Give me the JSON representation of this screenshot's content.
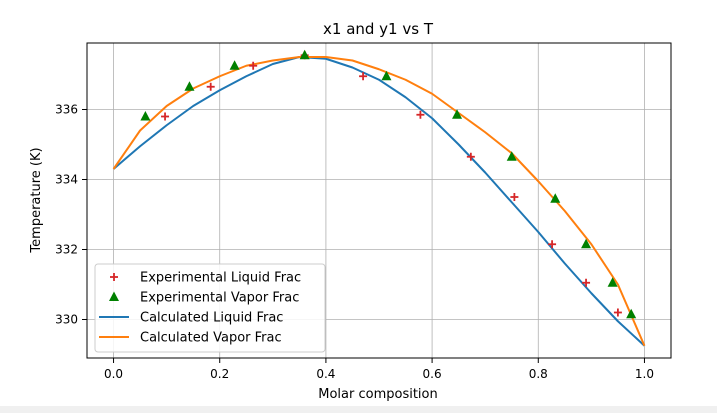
{
  "chart_data": {
    "type": "scatter+line",
    "title": "x1 and y1 vs T",
    "xlabel": "Molar composition",
    "ylabel": "Temperature (K)",
    "xlim": [
      -0.05,
      1.05
    ],
    "ylim": [
      328.9,
      337.9
    ],
    "xticks": [
      0.0,
      0.2,
      0.4,
      0.6,
      0.8,
      1.0
    ],
    "xtick_labels": [
      "0.0",
      "0.2",
      "0.4",
      "0.6",
      "0.8",
      "1.0"
    ],
    "yticks": [
      330,
      332,
      334,
      336
    ],
    "ytick_labels": [
      "330",
      "332",
      "334",
      "336"
    ],
    "grid": true,
    "legend_position": "lower-left",
    "series": [
      {
        "name": "Experimental Liquid Frac",
        "kind": "scatter",
        "marker": "plus",
        "color": "#d62728",
        "x": [
          0.097,
          0.183,
          0.263,
          0.36,
          0.47,
          0.578,
          0.673,
          0.755,
          0.826,
          0.89,
          0.95
        ],
        "y": [
          335.8,
          336.65,
          337.25,
          337.55,
          336.95,
          335.85,
          334.65,
          333.5,
          332.15,
          331.05,
          330.2
        ]
      },
      {
        "name": "Experimental Vapor Frac",
        "kind": "scatter",
        "marker": "triangle",
        "color": "#008000",
        "x": [
          0.06,
          0.143,
          0.228,
          0.36,
          0.514,
          0.647,
          0.75,
          0.832,
          0.89,
          0.94,
          0.975
        ],
        "y": [
          335.8,
          336.65,
          337.25,
          337.55,
          336.95,
          335.85,
          334.65,
          333.45,
          332.15,
          331.05,
          330.15
        ]
      },
      {
        "name": "Calculated Liquid Frac",
        "kind": "line",
        "color": "#1f77b4",
        "x": [
          0.0,
          0.05,
          0.1,
          0.15,
          0.2,
          0.25,
          0.3,
          0.35,
          0.4,
          0.45,
          0.5,
          0.55,
          0.6,
          0.65,
          0.7,
          0.75,
          0.8,
          0.85,
          0.9,
          0.95,
          1.0
        ],
        "y": [
          334.3,
          334.95,
          335.55,
          336.1,
          336.55,
          336.95,
          337.3,
          337.5,
          337.45,
          337.2,
          336.85,
          336.35,
          335.75,
          335.0,
          334.2,
          333.35,
          332.5,
          331.6,
          330.75,
          329.95,
          329.25
        ]
      },
      {
        "name": "Calculated Vapor Frac",
        "kind": "line",
        "color": "#ff7f0e",
        "x": [
          0.0,
          0.05,
          0.1,
          0.15,
          0.2,
          0.25,
          0.3,
          0.35,
          0.4,
          0.45,
          0.5,
          0.55,
          0.6,
          0.65,
          0.7,
          0.75,
          0.8,
          0.85,
          0.9,
          0.95,
          1.0
        ],
        "y": [
          334.3,
          335.4,
          336.1,
          336.6,
          336.95,
          337.25,
          337.4,
          337.5,
          337.5,
          337.4,
          337.15,
          336.85,
          336.45,
          335.9,
          335.35,
          334.75,
          333.95,
          333.1,
          332.15,
          331.0,
          329.25
        ]
      }
    ]
  }
}
